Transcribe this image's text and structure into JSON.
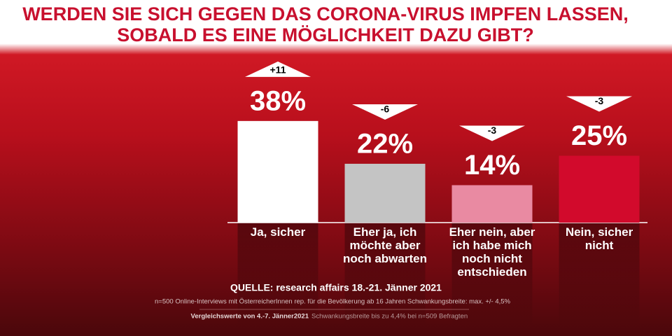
{
  "chart_data": {
    "type": "bar",
    "title_lines": [
      "WERDEN SIE SICH GEGEN DAS CORONA-VIRUS IMPFEN LASSEN,",
      "SOBALD ES EINE MÖGLICHKEIT DAZU GIBT?"
    ],
    "categories": [
      "Ja, sicher",
      "Eher ja, ich möchte aber noch abwarten",
      "Eher nein, aber ich habe mich noch nicht entschieden",
      "Nein, sicher nicht"
    ],
    "values": [
      38,
      22,
      14,
      25
    ],
    "value_labels": [
      "38%",
      "22%",
      "14%",
      "25%"
    ],
    "changes": [
      11,
      -6,
      -3,
      -3
    ],
    "change_labels": [
      "+11",
      "-6",
      "-3",
      "-3"
    ],
    "colors": [
      "#ffffff",
      "#c4c4c4",
      "#e98aa2",
      "#d20a2c"
    ],
    "source": "QUELLE: research affairs 18.-21. Jänner 2021",
    "note": "n=500 Online-Interviews mit ÖsterreicherInnen rep. für die Bevölkerung ab 16 Jahren  Schwankungsbreite: max. +/- 4,5%",
    "comparison": "Vergleichswerte von 4.-7. Jänner2021",
    "comparison_note": "Schwankungsbreite bis zu 4,4% bei n=509 Befragten"
  }
}
